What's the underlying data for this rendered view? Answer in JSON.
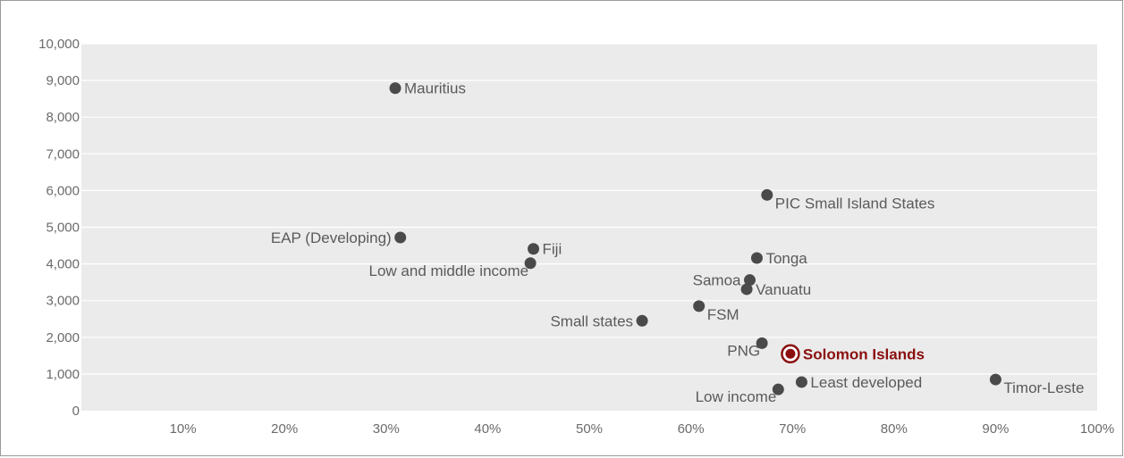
{
  "chart_data": {
    "type": "scatter",
    "title": "",
    "xlabel": "",
    "ylabel": "",
    "xlim": [
      0,
      100
    ],
    "ylim": [
      0,
      10000
    ],
    "grid": true,
    "x_ticks": [
      {
        "value": 10,
        "label": "10%"
      },
      {
        "value": 20,
        "label": "20%"
      },
      {
        "value": 30,
        "label": "30%"
      },
      {
        "value": 40,
        "label": "40%"
      },
      {
        "value": 50,
        "label": "50%"
      },
      {
        "value": 60,
        "label": "60%"
      },
      {
        "value": 70,
        "label": "70%"
      },
      {
        "value": 80,
        "label": "80%"
      },
      {
        "value": 90,
        "label": "90%"
      },
      {
        "value": 100,
        "label": "100%"
      }
    ],
    "y_ticks": [
      {
        "value": 0,
        "label": "0"
      },
      {
        "value": 1000,
        "label": "1,000"
      },
      {
        "value": 2000,
        "label": "2,000"
      },
      {
        "value": 3000,
        "label": "3,000"
      },
      {
        "value": 4000,
        "label": "4,000"
      },
      {
        "value": 5000,
        "label": "5,000"
      },
      {
        "value": 6000,
        "label": "6,000"
      },
      {
        "value": 7000,
        "label": "7,000"
      },
      {
        "value": 8000,
        "label": "8,000"
      },
      {
        "value": 9000,
        "label": "9,000"
      },
      {
        "value": 10000,
        "label": "10,000"
      }
    ],
    "colors": {
      "point": "#4a4a4a",
      "highlight": "#8b0e0e",
      "plot_bg": "#ebebeb",
      "grid": "#ffffff",
      "label": "#5a5a5a",
      "tick": "#6b6b6b"
    },
    "points": [
      {
        "name": "Mauritius",
        "x": 30.9,
        "y": 8790,
        "label_side": "right"
      },
      {
        "name": "PIC Small Island States",
        "x": 67.5,
        "y": 5880,
        "label_side": "right-below"
      },
      {
        "name": "EAP (Developing)",
        "x": 31.4,
        "y": 4720,
        "label_side": "left"
      },
      {
        "name": "Fiji",
        "x": 44.5,
        "y": 4410,
        "label_side": "right"
      },
      {
        "name": "Low and middle income",
        "x": 44.2,
        "y": 4020,
        "label_side": "left-below"
      },
      {
        "name": "Tonga",
        "x": 66.5,
        "y": 4160,
        "label_side": "right"
      },
      {
        "name": "Samoa",
        "x": 65.8,
        "y": 3560,
        "label_side": "left"
      },
      {
        "name": "Vanuatu",
        "x": 65.5,
        "y": 3310,
        "label_side": "right"
      },
      {
        "name": "FSM",
        "x": 60.8,
        "y": 2850,
        "label_side": "right-below"
      },
      {
        "name": "Small states",
        "x": 55.2,
        "y": 2450,
        "label_side": "left"
      },
      {
        "name": "PNG",
        "x": 67.0,
        "y": 1840,
        "label_side": "left-below"
      },
      {
        "name": "Solomon Islands",
        "x": 69.8,
        "y": 1550,
        "label_side": "right",
        "highlight": true
      },
      {
        "name": "Least developed",
        "x": 70.9,
        "y": 780,
        "label_side": "right"
      },
      {
        "name": "Low income",
        "x": 68.6,
        "y": 580,
        "label_side": "left-below"
      },
      {
        "name": "Timor-Leste",
        "x": 90.0,
        "y": 850,
        "label_side": "right-below"
      }
    ]
  }
}
